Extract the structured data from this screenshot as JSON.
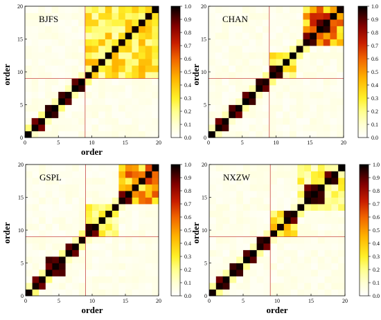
{
  "chart_data": [
    {
      "type": "heatmap",
      "title": "BJFS",
      "xlabel": "order",
      "ylabel": "order",
      "xlim": [
        0,
        20
      ],
      "ylim": [
        0,
        20
      ],
      "xticks": [
        "0",
        "5",
        "10",
        "15",
        "20"
      ],
      "yticks": [
        "0",
        "5",
        "10",
        "15",
        "20"
      ],
      "colorbar": {
        "range": [
          0,
          1
        ],
        "ticks": [
          "0.0",
          "0.1",
          "0.2",
          "0.3",
          "0.4",
          "0.5",
          "0.6",
          "0.7",
          "0.8",
          "0.9",
          "1.0"
        ]
      },
      "reference_lines": {
        "x": 9,
        "y": 9
      },
      "blocks": [
        [
          0,
          1
        ],
        [
          1,
          3
        ],
        [
          3,
          5
        ],
        [
          5,
          7
        ],
        [
          7,
          9
        ],
        [
          9,
          10
        ],
        [
          10,
          11
        ],
        [
          11,
          12
        ],
        [
          12,
          13
        ],
        [
          13,
          14
        ],
        [
          14,
          15
        ],
        [
          15,
          16
        ],
        [
          16,
          17
        ],
        [
          17,
          18
        ],
        [
          18,
          19
        ],
        [
          19,
          20
        ]
      ],
      "cluster_blocks": [
        [
          9,
          20,
          0.35
        ]
      ]
    },
    {
      "type": "heatmap",
      "title": "CHAN",
      "xlabel": "",
      "ylabel": "order",
      "xlim": [
        0,
        20
      ],
      "ylim": [
        0,
        20
      ],
      "xticks": [
        "0",
        "5",
        "10",
        "15",
        "20"
      ],
      "yticks": [
        "0",
        "5",
        "10",
        "15",
        "20"
      ],
      "colorbar": {
        "range": [
          0,
          1
        ],
        "ticks": [
          "0.0",
          "0.1",
          "0.2",
          "0.3",
          "0.4",
          "0.5",
          "0.6",
          "0.7",
          "0.8",
          "0.9",
          "1.0"
        ]
      },
      "reference_lines": {
        "x": 9,
        "y": 9
      },
      "blocks": [
        [
          0,
          1
        ],
        [
          1,
          3
        ],
        [
          3,
          5
        ],
        [
          5,
          7
        ],
        [
          7,
          9
        ],
        [
          9,
          11
        ],
        [
          11,
          12
        ],
        [
          12,
          13
        ],
        [
          13,
          14
        ],
        [
          14,
          16
        ],
        [
          16,
          18
        ],
        [
          18,
          19
        ],
        [
          19,
          20
        ]
      ],
      "cluster_blocks": [
        [
          14,
          20,
          0.6
        ],
        [
          9,
          13,
          0.3
        ]
      ]
    },
    {
      "type": "heatmap",
      "title": "GSPL",
      "xlabel": "order",
      "ylabel": "order",
      "xlim": [
        0,
        20
      ],
      "ylim": [
        0,
        20
      ],
      "xticks": [
        "0",
        "5",
        "10",
        "15",
        "20"
      ],
      "yticks": [
        "0",
        "5",
        "10",
        "15",
        "20"
      ],
      "colorbar": {
        "range": [
          0,
          1
        ],
        "ticks": [
          "0.0",
          "0.1",
          "0.2",
          "0.3",
          "0.4",
          "0.5",
          "0.6",
          "0.7",
          "0.8",
          "0.9",
          "1.0"
        ]
      },
      "reference_lines": {
        "x": 9,
        "y": 9
      },
      "blocks": [
        [
          0,
          1
        ],
        [
          1,
          3
        ],
        [
          3,
          6
        ],
        [
          6,
          8
        ],
        [
          8,
          9
        ],
        [
          9,
          11
        ],
        [
          11,
          12
        ],
        [
          12,
          13
        ],
        [
          13,
          14
        ],
        [
          14,
          16
        ],
        [
          16,
          17
        ],
        [
          17,
          18
        ],
        [
          18,
          19
        ],
        [
          19,
          20
        ]
      ],
      "cluster_blocks": [
        [
          14,
          20,
          0.55
        ],
        [
          9,
          14,
          0.25
        ]
      ]
    },
    {
      "type": "heatmap",
      "title": "NXZW",
      "xlabel": "order",
      "ylabel": "order",
      "xlim": [
        0,
        20
      ],
      "ylim": [
        0,
        20
      ],
      "xticks": [
        "0",
        "5",
        "10",
        "15",
        "20"
      ],
      "yticks": [
        "0",
        "5",
        "10",
        "15",
        "20"
      ],
      "colorbar": {
        "range": [
          0,
          1
        ],
        "ticks": [
          "0.0",
          "0.1",
          "0.2",
          "0.3",
          "0.4",
          "0.5",
          "0.6",
          "0.7",
          "0.8",
          "0.9",
          "1.0"
        ]
      },
      "reference_lines": {
        "x": 9,
        "y": 9
      },
      "blocks": [
        [
          0,
          1
        ],
        [
          1,
          3
        ],
        [
          3,
          5
        ],
        [
          5,
          7
        ],
        [
          7,
          9
        ],
        [
          9,
          10
        ],
        [
          10,
          11
        ],
        [
          11,
          13
        ],
        [
          13,
          14
        ],
        [
          14,
          17
        ],
        [
          17,
          19
        ],
        [
          19,
          20
        ]
      ],
      "cluster_blocks": [
        [
          9,
          13,
          0.35
        ],
        [
          13,
          20,
          0.25
        ]
      ]
    }
  ]
}
